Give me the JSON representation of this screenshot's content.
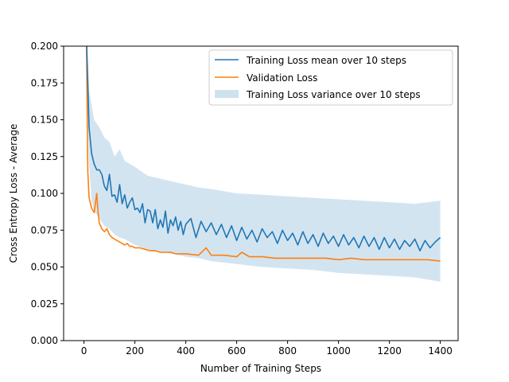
{
  "chart_data": {
    "type": "line",
    "xlabel": "Number of Training Steps",
    "ylabel": "Cross Entropy Loss - Average",
    "xlim": [
      -80,
      1470
    ],
    "ylim": [
      0,
      0.2
    ],
    "xticks": [
      0,
      200,
      400,
      600,
      800,
      1000,
      1200,
      1400
    ],
    "xtick_labels": [
      "0",
      "200",
      "400",
      "600",
      "800",
      "1000",
      "1200",
      "1400"
    ],
    "yticks": [
      0,
      0.025,
      0.05,
      0.075,
      0.1,
      0.125,
      0.15,
      0.175,
      0.2
    ],
    "ytick_labels": [
      "0.000",
      "0.025",
      "0.050",
      "0.075",
      "0.100",
      "0.125",
      "0.150",
      "0.175",
      "0.200"
    ],
    "grid": false,
    "legend_position": "top-right",
    "series": [
      {
        "name": "Training Loss mean over 10 steps",
        "kind": "line",
        "color": "#1f77b4",
        "x": [
          10,
          20,
          30,
          40,
          50,
          60,
          70,
          80,
          90,
          100,
          110,
          120,
          130,
          140,
          150,
          160,
          170,
          180,
          190,
          200,
          210,
          220,
          230,
          240,
          250,
          260,
          270,
          280,
          290,
          300,
          310,
          320,
          330,
          340,
          350,
          360,
          370,
          380,
          390,
          400,
          420,
          440,
          460,
          480,
          500,
          520,
          540,
          560,
          580,
          600,
          620,
          640,
          660,
          680,
          700,
          720,
          740,
          760,
          780,
          800,
          820,
          840,
          860,
          880,
          900,
          920,
          940,
          960,
          980,
          1000,
          1020,
          1040,
          1060,
          1080,
          1100,
          1120,
          1140,
          1160,
          1180,
          1200,
          1220,
          1240,
          1260,
          1280,
          1300,
          1320,
          1340,
          1360,
          1380,
          1400
        ],
        "y": [
          0.205,
          0.145,
          0.127,
          0.12,
          0.116,
          0.116,
          0.113,
          0.105,
          0.102,
          0.113,
          0.098,
          0.099,
          0.094,
          0.106,
          0.093,
          0.099,
          0.09,
          0.094,
          0.097,
          0.089,
          0.09,
          0.087,
          0.093,
          0.08,
          0.089,
          0.088,
          0.08,
          0.089,
          0.076,
          0.082,
          0.077,
          0.088,
          0.073,
          0.082,
          0.078,
          0.084,
          0.075,
          0.081,
          0.072,
          0.079,
          0.083,
          0.07,
          0.081,
          0.074,
          0.08,
          0.072,
          0.079,
          0.07,
          0.078,
          0.068,
          0.077,
          0.069,
          0.075,
          0.067,
          0.076,
          0.07,
          0.074,
          0.066,
          0.075,
          0.068,
          0.073,
          0.065,
          0.074,
          0.066,
          0.072,
          0.064,
          0.073,
          0.066,
          0.071,
          0.064,
          0.072,
          0.065,
          0.07,
          0.063,
          0.071,
          0.064,
          0.07,
          0.062,
          0.07,
          0.063,
          0.069,
          0.062,
          0.068,
          0.064,
          0.069,
          0.061,
          0.068,
          0.063,
          0.067,
          0.07
        ]
      },
      {
        "name": "Validation Loss",
        "kind": "line",
        "color": "#ff7f0e",
        "x": [
          10,
          15,
          20,
          30,
          40,
          50,
          55,
          60,
          70,
          80,
          90,
          100,
          110,
          120,
          130,
          140,
          150,
          160,
          170,
          180,
          190,
          200,
          220,
          240,
          260,
          280,
          300,
          320,
          340,
          360,
          380,
          400,
          450,
          480,
          500,
          550,
          600,
          620,
          650,
          700,
          750,
          800,
          850,
          900,
          950,
          1000,
          1050,
          1100,
          1150,
          1200,
          1250,
          1300,
          1350,
          1400
        ],
        "y": [
          0.2,
          0.115,
          0.097,
          0.09,
          0.087,
          0.1,
          0.088,
          0.08,
          0.076,
          0.074,
          0.076,
          0.072,
          0.07,
          0.069,
          0.068,
          0.067,
          0.066,
          0.065,
          0.066,
          0.064,
          0.064,
          0.063,
          0.063,
          0.062,
          0.061,
          0.061,
          0.06,
          0.06,
          0.06,
          0.059,
          0.059,
          0.059,
          0.058,
          0.063,
          0.058,
          0.058,
          0.057,
          0.06,
          0.057,
          0.057,
          0.056,
          0.056,
          0.056,
          0.056,
          0.056,
          0.055,
          0.056,
          0.055,
          0.055,
          0.055,
          0.055,
          0.055,
          0.055,
          0.054
        ]
      },
      {
        "name": "Training Loss variance over 10 steps",
        "kind": "band",
        "color": "#aecde5",
        "x": [
          10,
          20,
          30,
          40,
          60,
          80,
          100,
          120,
          140,
          160,
          180,
          200,
          250,
          300,
          350,
          400,
          450,
          500,
          600,
          700,
          800,
          900,
          1000,
          1100,
          1200,
          1300,
          1400
        ],
        "lower": [
          0.2,
          0.12,
          0.095,
          0.088,
          0.083,
          0.078,
          0.076,
          0.072,
          0.07,
          0.069,
          0.067,
          0.065,
          0.062,
          0.06,
          0.059,
          0.057,
          0.056,
          0.054,
          0.052,
          0.05,
          0.049,
          0.048,
          0.046,
          0.045,
          0.044,
          0.043,
          0.04
        ],
        "upper": [
          0.21,
          0.17,
          0.16,
          0.15,
          0.145,
          0.138,
          0.135,
          0.125,
          0.13,
          0.122,
          0.12,
          0.118,
          0.112,
          0.11,
          0.108,
          0.106,
          0.104,
          0.103,
          0.1,
          0.099,
          0.098,
          0.097,
          0.096,
          0.095,
          0.094,
          0.093,
          0.095
        ]
      }
    ]
  }
}
